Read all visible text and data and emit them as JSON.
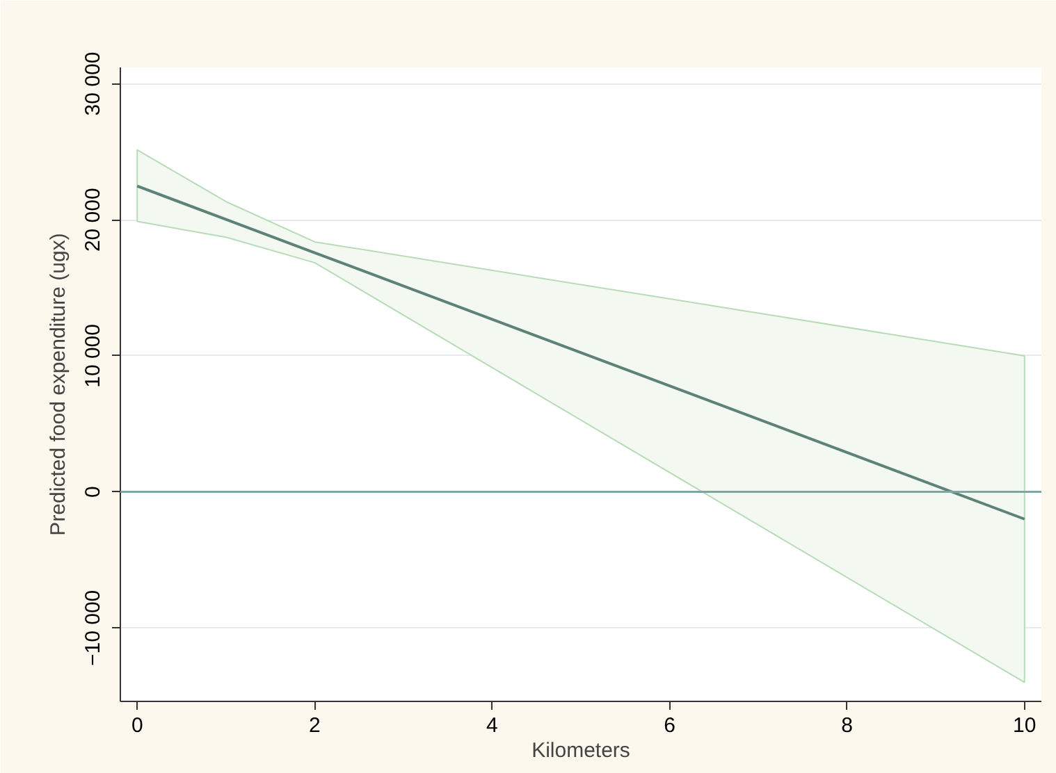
{
  "chart_data": {
    "type": "line",
    "xlabel": "Kilometers",
    "ylabel": "Predicted food expenditure (ugx)",
    "series": [
      {
        "color": "#5d8278",
        "x": [
          0,
          1,
          2,
          10
        ],
        "values": [
          22480,
          20030,
          17580,
          -2000
        ],
        "lower": [
          19880,
          18720,
          16850,
          -14000
        ],
        "upper": [
          25140,
          21340,
          18380,
          10000
        ]
      }
    ],
    "xlim": [
      -0.19,
      10.19
    ],
    "ylim": [
      -15400,
      31200
    ],
    "xticks": [
      0,
      2,
      4,
      6,
      8,
      10
    ],
    "yticks": [
      {
        "value": -10000,
        "label": "−10 000"
      },
      {
        "value": 0,
        "label": "0"
      },
      {
        "value": 10000,
        "label": "10 000"
      },
      {
        "value": 20000,
        "label": "20 000"
      },
      {
        "value": 30000,
        "label": "30 000"
      }
    ],
    "ref_lines": [
      {
        "axis": "y",
        "value": 0,
        "color": "#7fa5a5"
      }
    ],
    "grid": "y",
    "line_style": "solid"
  }
}
